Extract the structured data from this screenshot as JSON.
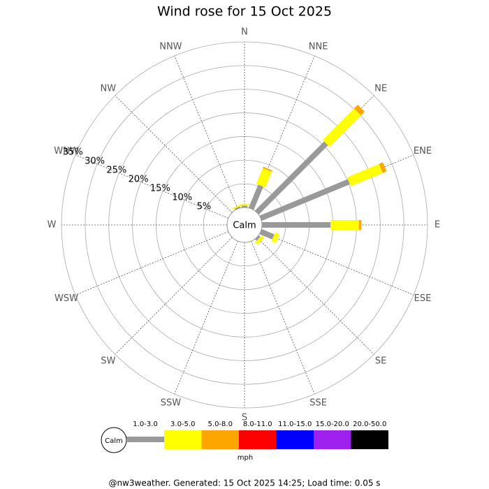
{
  "chart_data": {
    "type": "rose",
    "title": "Wind rose for 15 Oct 2025",
    "categories": [
      "N",
      "NNE",
      "NE",
      "ENE",
      "E",
      "ESE",
      "SE",
      "SSE",
      "S",
      "SSW",
      "SW",
      "WSW",
      "W",
      "WNW",
      "NW",
      "NNW"
    ],
    "series": [
      {
        "name": "1.0-3.0",
        "color": "#999999",
        "values": [
          0.4,
          5.3,
          20.7,
          20.2,
          14.5,
          2.9,
          0.5,
          0,
          0,
          0,
          0,
          0,
          0,
          0,
          0,
          0.3
        ]
      },
      {
        "name": "3.0-5.0",
        "color": "#ffff00",
        "values": [
          0.3,
          3.6,
          9.4,
          7.3,
          6.0,
          1.0,
          0.7,
          0,
          0,
          0,
          0,
          0,
          0,
          0,
          0,
          0.3
        ]
      },
      {
        "name": "5.0-8.0",
        "color": "#ffa500",
        "values": [
          0,
          0.3,
          1.1,
          0.9,
          0.5,
          0,
          0,
          0,
          0,
          0,
          0,
          0,
          0,
          0,
          0,
          0
        ]
      },
      {
        "name": "8.0-11.0",
        "color": "#ff0000",
        "values": [
          0,
          0,
          0,
          0,
          0,
          0,
          0,
          0,
          0,
          0,
          0,
          0,
          0,
          0,
          0,
          0
        ]
      },
      {
        "name": "11.0-15.0",
        "color": "#0000ff",
        "values": [
          0,
          0,
          0,
          0,
          0,
          0,
          0,
          0,
          0,
          0,
          0,
          0,
          0,
          0,
          0,
          0
        ]
      },
      {
        "name": "15.0-20.0",
        "color": "#a020f0",
        "values": [
          0,
          0,
          0,
          0,
          0,
          0,
          0,
          0,
          0,
          0,
          0,
          0,
          0,
          0,
          0,
          0
        ]
      },
      {
        "name": "20.0-50.0",
        "color": "#000000",
        "values": [
          0,
          0,
          0,
          0,
          0,
          0,
          0,
          0,
          0,
          0,
          0,
          0,
          0,
          0,
          0,
          0
        ]
      }
    ],
    "rlim": [
      0,
      35
    ],
    "rticks": [
      {
        "value": 5,
        "label": "5%"
      },
      {
        "value": 10,
        "label": "10%"
      },
      {
        "value": 15,
        "label": "15%"
      },
      {
        "value": 20,
        "label": "20%"
      },
      {
        "value": 25,
        "label": "25%"
      },
      {
        "value": 30,
        "label": "30%"
      },
      {
        "value": 35,
        "label": "35%"
      }
    ],
    "calm_label": "Calm",
    "legend_unit": "mph",
    "footer": "@nw3weather. Generated: 15 Oct 2025 14:25; Load time: 0.05 s"
  }
}
